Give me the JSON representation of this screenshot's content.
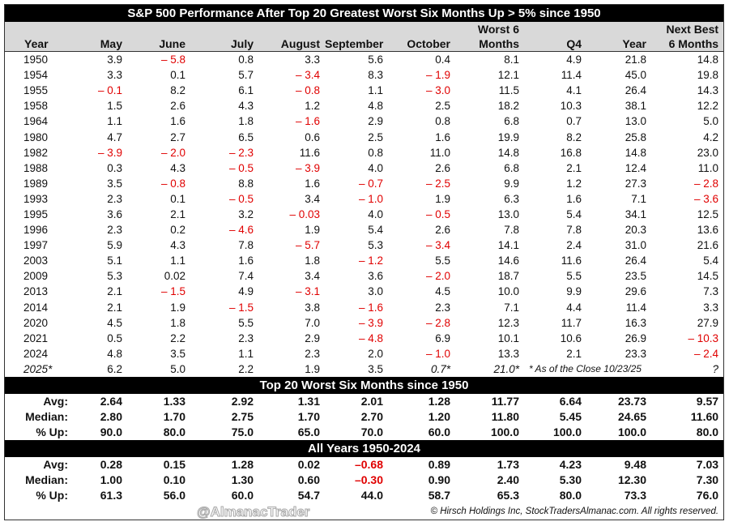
{
  "chart_data": {
    "type": "table",
    "title": "S&P 500 Performance After Top 20 Greatest Worst Six Months Up > 5% since 1950",
    "columns": [
      "Year",
      "May",
      "June",
      "July",
      "August",
      "September",
      "October",
      "Worst 6 Months",
      "Q4",
      "Year",
      "Next Best 6 Months"
    ],
    "header_top": [
      "",
      "",
      "",
      "",
      "",
      "",
      "",
      "Worst 6",
      "",
      "",
      "Next Best"
    ],
    "header_bottom": [
      "Year",
      "May",
      "June",
      "July",
      "August",
      "September",
      "October",
      "Months",
      "Q4",
      "Year",
      "6 Months"
    ],
    "rows": [
      [
        "1950",
        "3.9",
        "– 5.8",
        "0.8",
        "3.3",
        "5.6",
        "0.4",
        "8.1",
        "4.9",
        "21.8",
        "14.8"
      ],
      [
        "1954",
        "3.3",
        "0.1",
        "5.7",
        "– 3.4",
        "8.3",
        "– 1.9",
        "12.1",
        "11.4",
        "45.0",
        "19.8"
      ],
      [
        "1955",
        "– 0.1",
        "8.2",
        "6.1",
        "– 0.8",
        "1.1",
        "– 3.0",
        "11.5",
        "4.1",
        "26.4",
        "14.3"
      ],
      [
        "1958",
        "1.5",
        "2.6",
        "4.3",
        "1.2",
        "4.8",
        "2.5",
        "18.2",
        "10.3",
        "38.1",
        "12.2"
      ],
      [
        "1964",
        "1.1",
        "1.6",
        "1.8",
        "– 1.6",
        "2.9",
        "0.8",
        "6.8",
        "0.7",
        "13.0",
        "5.0"
      ],
      [
        "1980",
        "4.7",
        "2.7",
        "6.5",
        "0.6",
        "2.5",
        "1.6",
        "19.9",
        "8.2",
        "25.8",
        "4.2"
      ],
      [
        "1982",
        "– 3.9",
        "– 2.0",
        "– 2.3",
        "11.6",
        "0.8",
        "11.0",
        "14.8",
        "16.8",
        "14.8",
        "23.0"
      ],
      [
        "1988",
        "0.3",
        "4.3",
        "– 0.5",
        "– 3.9",
        "4.0",
        "2.6",
        "6.8",
        "2.1",
        "12.4",
        "11.0"
      ],
      [
        "1989",
        "3.5",
        "– 0.8",
        "8.8",
        "1.6",
        "– 0.7",
        "– 2.5",
        "9.9",
        "1.2",
        "27.3",
        "– 2.8"
      ],
      [
        "1993",
        "2.3",
        "0.1",
        "– 0.5",
        "3.4",
        "– 1.0",
        "1.9",
        "6.3",
        "1.6",
        "7.1",
        "– 3.6"
      ],
      [
        "1995",
        "3.6",
        "2.1",
        "3.2",
        "– 0.03",
        "4.0",
        "– 0.5",
        "13.0",
        "5.4",
        "34.1",
        "12.5"
      ],
      [
        "1996",
        "2.3",
        "0.2",
        "– 4.6",
        "1.9",
        "5.4",
        "2.6",
        "7.8",
        "7.8",
        "20.3",
        "13.6"
      ],
      [
        "1997",
        "5.9",
        "4.3",
        "7.8",
        "– 5.7",
        "5.3",
        "– 3.4",
        "14.1",
        "2.4",
        "31.0",
        "21.6"
      ],
      [
        "2003",
        "5.1",
        "1.1",
        "1.6",
        "1.8",
        "– 1.2",
        "5.5",
        "14.6",
        "11.6",
        "26.4",
        "5.4"
      ],
      [
        "2009",
        "5.3",
        "0.02",
        "7.4",
        "3.4",
        "3.6",
        "– 2.0",
        "18.7",
        "5.5",
        "23.5",
        "14.5"
      ],
      [
        "2013",
        "2.1",
        "– 1.5",
        "4.9",
        "– 3.1",
        "3.0",
        "4.5",
        "10.0",
        "9.9",
        "29.6",
        "7.3"
      ],
      [
        "2014",
        "2.1",
        "1.9",
        "– 1.5",
        "3.8",
        "– 1.6",
        "2.3",
        "7.1",
        "4.4",
        "11.4",
        "3.3"
      ],
      [
        "2020",
        "4.5",
        "1.8",
        "5.5",
        "7.0",
        "– 3.9",
        "– 2.8",
        "12.3",
        "11.7",
        "16.3",
        "27.9"
      ],
      [
        "2021",
        "0.5",
        "2.2",
        "2.3",
        "2.9",
        "– 4.8",
        "6.9",
        "10.1",
        "10.6",
        "26.9",
        "– 10.3"
      ],
      [
        "2024",
        "4.8",
        "3.5",
        "1.1",
        "2.3",
        "2.0",
        "– 1.0",
        "13.3",
        "2.1",
        "23.3",
        "– 2.4"
      ]
    ],
    "current_row": {
      "year": "2025*",
      "values": [
        "6.2",
        "5.0",
        "2.2",
        "1.9",
        "3.5",
        "0.7*",
        "21.0*"
      ],
      "note": "* As of the Close 10/23/25",
      "next_best": "?"
    },
    "sections": [
      {
        "title": "Top 20 Worst Six Months since 1950",
        "rows": [
          [
            "Avg:",
            "2.64",
            "1.33",
            "2.92",
            "1.31",
            "2.01",
            "1.28",
            "11.77",
            "6.64",
            "23.73",
            "9.57"
          ],
          [
            "Median:",
            "2.80",
            "1.70",
            "2.75",
            "1.70",
            "2.70",
            "1.20",
            "11.80",
            "5.45",
            "24.65",
            "11.60"
          ],
          [
            "% Up:",
            "90.0",
            "80.0",
            "75.0",
            "65.0",
            "70.0",
            "60.0",
            "100.0",
            "100.0",
            "100.0",
            "80.0"
          ]
        ]
      },
      {
        "title": "All Years 1950-2024",
        "rows": [
          [
            "Avg:",
            "0.28",
            "0.15",
            "1.28",
            "0.02",
            "–0.68",
            "0.89",
            "1.73",
            "4.23",
            "9.48",
            "7.03"
          ],
          [
            "Median:",
            "1.00",
            "0.10",
            "1.30",
            "0.60",
            "–0.30",
            "0.90",
            "2.40",
            "5.30",
            "12.30",
            "7.30"
          ],
          [
            "% Up:",
            "61.3",
            "56.0",
            "60.0",
            "54.7",
            "44.0",
            "58.7",
            "65.3",
            "80.0",
            "73.3",
            "76.0"
          ]
        ]
      }
    ],
    "colors": {
      "negative": "#e00000",
      "header_bg": "#d9d9d9",
      "band_bg": "#000000"
    }
  },
  "footer": {
    "watermark": "@AlmanacTrader",
    "copyright": "© Hirsch Holdings Inc, StockTradersAlmanac.com. All rights reserved."
  }
}
